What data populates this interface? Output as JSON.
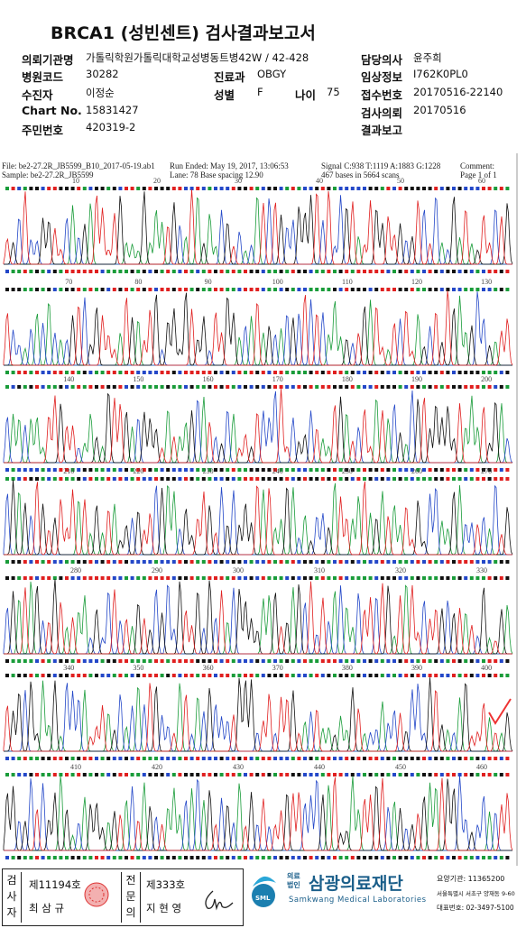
{
  "header": {
    "title": "BRCA1 (성빈센트) 검사결과보고서",
    "fields": [
      {
        "label": "의뢰기관명",
        "value": "가톨릭학원가톨릭대학교성병동트병42W / 42-428"
      },
      {
        "label": "담당의사",
        "value": "윤주희"
      },
      {
        "label": "병원코드",
        "value": "30282"
      },
      {
        "label": "진료과",
        "value": "OBGY"
      },
      {
        "label": "임상정보",
        "value": "I762K0PL0"
      },
      {
        "label": "수진자",
        "value": "이정순"
      },
      {
        "label": "성별",
        "value": "F"
      },
      {
        "label": "나이",
        "value": "75"
      },
      {
        "label": "접수번호",
        "value": "20170516-22140"
      },
      {
        "label": "Chart No.",
        "value": "15831427"
      },
      {
        "label": "검사의뢰",
        "value": "20170516"
      },
      {
        "label": "주민번호",
        "value": "420319-2"
      },
      {
        "label": "결과보고"
      }
    ]
  },
  "chromatogram": {
    "file": "File: be2-27.2R_JB5599_B10_2017-05-19.ab1",
    "sample": "Sample: be2-27.2R_JB5599",
    "run_ended": "Run Ended: May 19, 2017, 13:06:53",
    "lane": "Lane: 78   Base spacing 12.90",
    "signal": "Signal C:938 T:1119 A:1883 G:1228",
    "bases": "467 bases in 5664 scans",
    "comment": "Comment:",
    "page": "Page 1 of 1",
    "rows": [
      [
        10,
        20,
        30,
        40,
        50,
        60
      ],
      [
        70,
        80,
        90,
        100,
        110,
        120,
        130
      ],
      [
        140,
        150,
        160,
        170,
        180,
        190,
        200
      ],
      [
        210,
        220,
        230,
        240,
        250,
        260,
        270
      ],
      [
        280,
        290,
        300,
        310,
        320,
        330
      ],
      [
        340,
        350,
        360,
        370,
        380,
        390,
        400
      ],
      [
        410,
        420,
        430,
        440,
        450,
        460
      ]
    ]
  },
  "footer": {
    "tester_role": "검사자",
    "tester_no": "제11194호",
    "tester_name": "최 삼 규",
    "doctor_role": "전문의",
    "doctor_no": "제333호",
    "doctor_name": "지 현 영",
    "org_type": "의료법인",
    "org_name": "삼광의료재단",
    "org_en": "Samkwang Medical Laboratories",
    "logo": "SML",
    "code": "요양기관: 11365200",
    "address": "서울특별시 서초구 양재동 9-60",
    "phone": "대표번호: 02-3497-5100"
  }
}
